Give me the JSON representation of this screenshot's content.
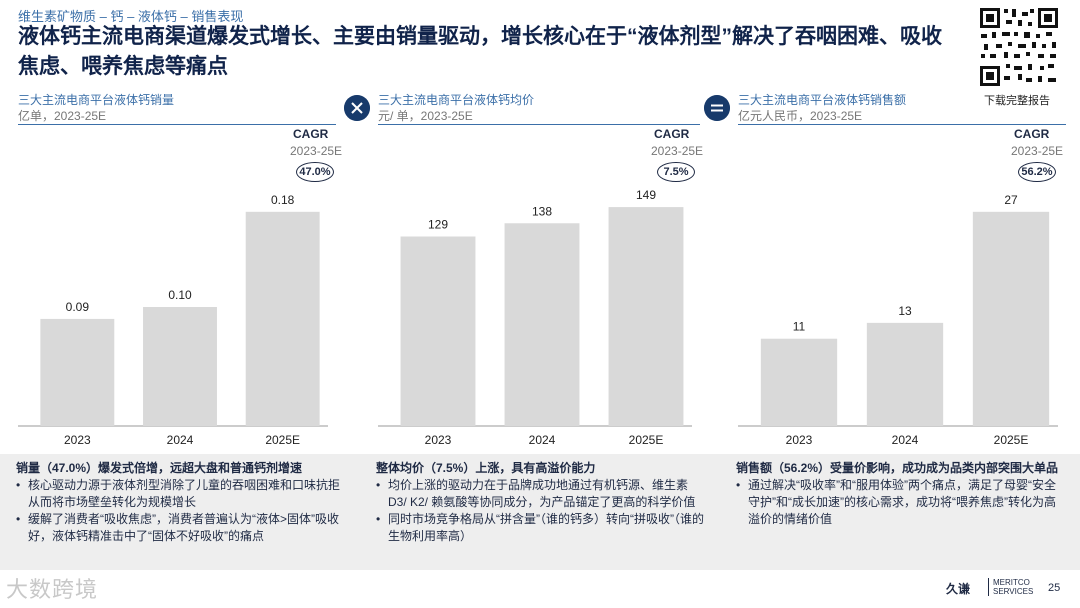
{
  "breadcrumb": "维生素矿物质 – 钙 – 液体钙 – 销售表现",
  "title": "液体钙主流电商渠道爆发式增长、主要由销量驱动，增长核心在于“液体剂型”解决了吞咽困难、吸收焦虑、喂养焦虑等痛点",
  "qr": {
    "label": "下载完整报告"
  },
  "operators": {
    "multiply_icon": "multiply-icon",
    "equals_icon": "equals-icon"
  },
  "panels": [
    {
      "title": "三大主流电商平台液体钙销量",
      "unit": "亿单，2023-25E",
      "cagr_label": "CAGR",
      "cagr_years": "2023-25E",
      "cagr_value": "47.0%"
    },
    {
      "title": "三大主流电商平台液体钙均价",
      "unit": "元/ 单，2023-25E",
      "cagr_label": "CAGR",
      "cagr_years": "2023-25E",
      "cagr_value": "7.5%"
    },
    {
      "title": "三大主流电商平台液体钙销售额",
      "unit": "亿元人民币，2023-25E",
      "cagr_label": "CAGR",
      "cagr_years": "2023-25E",
      "cagr_value": "56.2%"
    }
  ],
  "chart_data": [
    {
      "type": "bar",
      "title": "三大主流电商平台液体钙销量",
      "ylabel": "亿单",
      "categories": [
        "2023",
        "2024",
        "2025E"
      ],
      "values": [
        0.09,
        0.1,
        0.18
      ],
      "labels": [
        "0.09",
        "0.10",
        "0.18"
      ],
      "ylim": [
        0,
        0.2
      ],
      "color": "#d9d9d9"
    },
    {
      "type": "bar",
      "title": "三大主流电商平台液体钙均价",
      "ylabel": "元/ 单",
      "categories": [
        "2023",
        "2024",
        "2025E"
      ],
      "values": [
        129,
        138,
        149
      ],
      "labels": [
        "129",
        "138",
        "149"
      ],
      "ylim": [
        0,
        162
      ],
      "color": "#d9d9d9"
    },
    {
      "type": "bar",
      "title": "三大主流电商平台液体钙销售额",
      "ylabel": "亿元人民币",
      "categories": [
        "2023",
        "2024",
        "2025E"
      ],
      "values": [
        11,
        13,
        27
      ],
      "labels": [
        "11",
        "13",
        "27"
      ],
      "ylim": [
        0,
        30
      ],
      "color": "#d9d9d9"
    }
  ],
  "notes": [
    {
      "head": "销量（47.0%）爆发式倍增，远超大盘和普通钙剂增速",
      "items": [
        "核心驱动力源于液体剂型消除了儿童的吞咽困难和口味抗拒从而将市场壁垒转化为规模增长",
        "缓解了消费者“吸收焦虑”，消费者普遍认为“液体>固体”吸收好，液体钙精准击中了“固体不好吸收”的痛点"
      ]
    },
    {
      "head": "整体均价（7.5%）上涨，具有高溢价能力",
      "items": [
        "均价上涨的驱动力在于品牌成功地通过有机钙源、维生素D3/ K2/ 赖氨酸等协同成分，为产品锚定了更高的科学价值",
        "同时市场竞争格局从“拼含量”（谁的钙多）转向“拼吸收”（谁的生物利用率高）"
      ]
    },
    {
      "head": "销售额（56.2%）受量价影响，成功成为品类内部突围大单品",
      "items": [
        "通过解决“吸收率”和“服用体验”两个痛点，满足了母婴“安全守护”和“成长加速”的核心需求，成功将“喂养焦虑”转化为高溢价的情绪价值"
      ]
    }
  ],
  "footer": {
    "watermark": "大数跨境",
    "brand": "久谦",
    "brand_en1": "MERITCO",
    "brand_en2": "SERVICES",
    "page": "25"
  }
}
